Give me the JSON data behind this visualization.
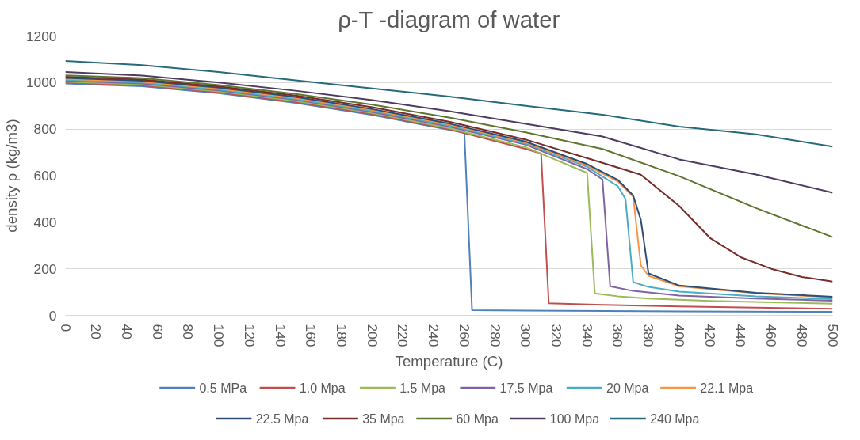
{
  "chart_data": {
    "type": "line",
    "title": "ρ-T -diagram of water",
    "xlabel": "Temperature (C)",
    "ylabel": "density ρ (kg/m3)",
    "xlim": [
      0,
      500
    ],
    "xticks": [
      0,
      20,
      40,
      60,
      80,
      100,
      120,
      140,
      160,
      180,
      200,
      220,
      240,
      260,
      280,
      300,
      320,
      340,
      360,
      380,
      400,
      420,
      440,
      460,
      480,
      500
    ],
    "ylim": [
      0,
      1200
    ],
    "yticks": [
      0,
      200,
      400,
      600,
      800,
      1000,
      1200
    ],
    "grid": "y",
    "legend": "bottom",
    "line_style": "solid",
    "marker": "none",
    "series": [
      {
        "name": "0.5 MPa",
        "color": "#4f81bd",
        "x": [
          0,
          50,
          100,
          150,
          200,
          250,
          260,
          265,
          300,
          400,
          500
        ],
        "values": [
          996,
          984,
          954,
          913,
          861,
          797,
          785,
          22,
          20,
          17,
          15
        ]
      },
      {
        "name": "1.0 Mpa",
        "color": "#c0504d",
        "x": [
          0,
          50,
          100,
          150,
          200,
          250,
          300,
          310,
          315,
          350,
          400,
          500
        ],
        "values": [
          1000,
          988,
          958,
          917,
          865,
          800,
          715,
          695,
          52,
          45,
          38,
          28
        ]
      },
      {
        "name": "1.5 Mpa",
        "color": "#9bbb59",
        "x": [
          0,
          50,
          100,
          150,
          200,
          250,
          300,
          340,
          345,
          360,
          380,
          420,
          500
        ],
        "values": [
          1004,
          992,
          962,
          921,
          869,
          804,
          722,
          612,
          94,
          82,
          72,
          62,
          50
        ]
      },
      {
        "name": "17.5 Mpa",
        "color": "#8064a2",
        "x": [
          0,
          50,
          100,
          150,
          200,
          250,
          300,
          340,
          350,
          355,
          370,
          400,
          450,
          500
        ],
        "values": [
          1008,
          996,
          966,
          926,
          874,
          811,
          733,
          628,
          584,
          125,
          105,
          85,
          72,
          63
        ]
      },
      {
        "name": "20 Mpa",
        "color": "#4bacc6",
        "x": [
          0,
          50,
          100,
          150,
          200,
          250,
          300,
          340,
          360,
          365,
          370,
          380,
          400,
          450,
          500
        ],
        "values": [
          1012,
          1000,
          970,
          930,
          878,
          816,
          738,
          638,
          555,
          500,
          143,
          122,
          102,
          82,
          70
        ]
      },
      {
        "name": "22.1 Mpa",
        "color": "#f79646",
        "x": [
          0,
          50,
          100,
          150,
          200,
          250,
          300,
          340,
          360,
          370,
          375,
          380,
          400,
          450,
          500
        ],
        "values": [
          1016,
          1004,
          974,
          934,
          882,
          820,
          742,
          644,
          575,
          510,
          215,
          170,
          125,
          95,
          77
        ]
      },
      {
        "name": "22.5 Mpa",
        "color": "#2c4d75",
        "x": [
          0,
          50,
          100,
          150,
          200,
          250,
          300,
          340,
          360,
          370,
          375,
          380,
          400,
          450,
          500
        ],
        "values": [
          1020,
          1008,
          978,
          938,
          886,
          824,
          746,
          650,
          582,
          515,
          410,
          180,
          128,
          97,
          80
        ]
      },
      {
        "name": "35 Mpa",
        "color": "#772c2a",
        "x": [
          0,
          50,
          100,
          150,
          200,
          250,
          300,
          350,
          375,
          400,
          420,
          440,
          460,
          480,
          500
        ],
        "values": [
          1025,
          1013,
          983,
          944,
          894,
          832,
          755,
          655,
          604,
          470,
          333,
          250,
          200,
          165,
          145
        ]
      },
      {
        "name": "60 Mpa",
        "color": "#5f7530",
        "x": [
          0,
          50,
          100,
          150,
          200,
          250,
          300,
          350,
          400,
          450,
          500
        ],
        "values": [
          1031,
          1019,
          989,
          951,
          905,
          850,
          786,
          715,
          598,
          461,
          336
        ]
      },
      {
        "name": "100 Mpa",
        "color": "#4d3b62",
        "x": [
          0,
          50,
          100,
          150,
          200,
          250,
          300,
          350,
          400,
          450,
          500
        ],
        "values": [
          1045,
          1030,
          1000,
          965,
          925,
          877,
          823,
          768,
          670,
          605,
          527
        ]
      },
      {
        "name": "240 Mpa",
        "color": "#276a7c",
        "x": [
          0,
          50,
          100,
          150,
          200,
          250,
          300,
          350,
          400,
          450,
          500
        ],
        "values": [
          1093,
          1075,
          1045,
          1010,
          975,
          940,
          900,
          862,
          811,
          778,
          725
        ]
      }
    ]
  }
}
